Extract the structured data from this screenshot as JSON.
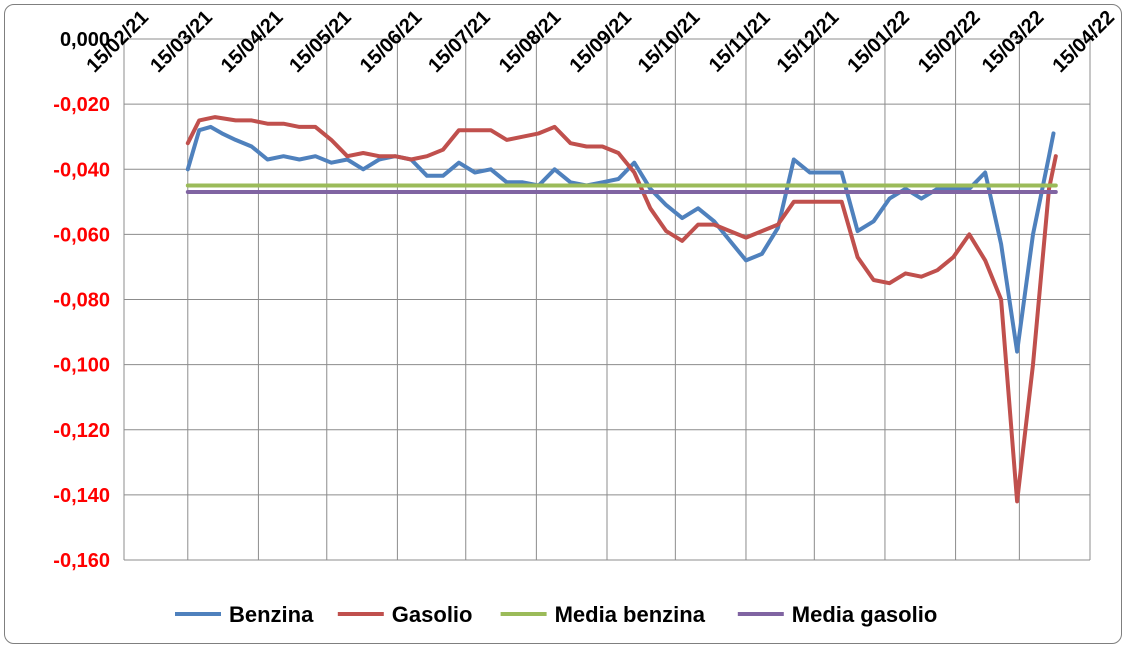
{
  "chart_data": {
    "type": "line",
    "title": "",
    "xlabel": "",
    "ylabel": "",
    "ylim": [
      -0.16,
      0.0
    ],
    "y_ticks": [
      "0,000",
      "-0,020",
      "-0,040",
      "-0,060",
      "-0,080",
      "-0,100",
      "-0,120",
      "-0,140",
      "-0,160"
    ],
    "y_tick_colors": [
      "#000000",
      "#ff0000",
      "#ff0000",
      "#ff0000",
      "#ff0000",
      "#ff0000",
      "#ff0000",
      "#ff0000",
      "#ff0000"
    ],
    "x_ticks": [
      "15/02/21",
      "15/03/21",
      "15/04/21",
      "15/05/21",
      "15/06/21",
      "15/07/21",
      "15/08/21",
      "15/09/21",
      "15/10/21",
      "15/11/21",
      "15/12/21",
      "15/01/22",
      "15/02/22",
      "15/03/22",
      "15/04/22"
    ],
    "x_range": [
      "15/02/21",
      "15/04/22"
    ],
    "grid": true,
    "legend_position": "bottom",
    "series": [
      {
        "name": "Benzina",
        "color": "#4f81bd",
        "points": [
          [
            "15/03/21",
            -0.04
          ],
          [
            "20/03/21",
            -0.028
          ],
          [
            "25/03/21",
            -0.027
          ],
          [
            "30/03/21",
            -0.029
          ],
          [
            "05/04/21",
            -0.031
          ],
          [
            "12/04/21",
            -0.033
          ],
          [
            "19/04/21",
            -0.037
          ],
          [
            "26/04/21",
            -0.036
          ],
          [
            "03/05/21",
            -0.037
          ],
          [
            "10/05/21",
            -0.036
          ],
          [
            "17/05/21",
            -0.038
          ],
          [
            "24/05/21",
            -0.037
          ],
          [
            "31/05/21",
            -0.04
          ],
          [
            "07/06/21",
            -0.037
          ],
          [
            "14/06/21",
            -0.036
          ],
          [
            "21/06/21",
            -0.037
          ],
          [
            "28/06/21",
            -0.042
          ],
          [
            "05/07/21",
            -0.042
          ],
          [
            "12/07/21",
            -0.038
          ],
          [
            "19/07/21",
            -0.041
          ],
          [
            "26/07/21",
            -0.04
          ],
          [
            "02/08/21",
            -0.044
          ],
          [
            "09/08/21",
            -0.044
          ],
          [
            "16/08/21",
            -0.045
          ],
          [
            "23/08/21",
            -0.04
          ],
          [
            "30/08/21",
            -0.044
          ],
          [
            "06/09/21",
            -0.045
          ],
          [
            "13/09/21",
            -0.044
          ],
          [
            "20/09/21",
            -0.043
          ],
          [
            "27/09/21",
            -0.038
          ],
          [
            "04/10/21",
            -0.046
          ],
          [
            "11/10/21",
            -0.051
          ],
          [
            "18/10/21",
            -0.055
          ],
          [
            "25/10/21",
            -0.052
          ],
          [
            "01/11/21",
            -0.056
          ],
          [
            "08/11/21",
            -0.062
          ],
          [
            "15/11/21",
            -0.068
          ],
          [
            "22/11/21",
            -0.066
          ],
          [
            "29/11/21",
            -0.058
          ],
          [
            "06/12/21",
            -0.037
          ],
          [
            "13/12/21",
            -0.041
          ],
          [
            "20/12/21",
            -0.041
          ],
          [
            "27/12/21",
            -0.041
          ],
          [
            "03/01/22",
            -0.059
          ],
          [
            "10/01/22",
            -0.056
          ],
          [
            "17/01/22",
            -0.049
          ],
          [
            "24/01/22",
            -0.046
          ],
          [
            "31/01/22",
            -0.049
          ],
          [
            "07/02/22",
            -0.046
          ],
          [
            "14/02/22",
            -0.046
          ],
          [
            "21/02/22",
            -0.046
          ],
          [
            "28/02/22",
            -0.041
          ],
          [
            "07/03/22",
            -0.063
          ],
          [
            "14/03/22",
            -0.096
          ],
          [
            "21/03/22",
            -0.06
          ],
          [
            "28/03/22",
            -0.036
          ],
          [
            "30/03/22",
            -0.029
          ]
        ]
      },
      {
        "name": "Gasolio",
        "color": "#c0504d",
        "points": [
          [
            "15/03/21",
            -0.032
          ],
          [
            "20/03/21",
            -0.025
          ],
          [
            "27/03/21",
            -0.024
          ],
          [
            "05/04/21",
            -0.025
          ],
          [
            "12/04/21",
            -0.025
          ],
          [
            "19/04/21",
            -0.026
          ],
          [
            "26/04/21",
            -0.026
          ],
          [
            "03/05/21",
            -0.027
          ],
          [
            "10/05/21",
            -0.027
          ],
          [
            "17/05/21",
            -0.031
          ],
          [
            "24/05/21",
            -0.036
          ],
          [
            "31/05/21",
            -0.035
          ],
          [
            "07/06/21",
            -0.036
          ],
          [
            "14/06/21",
            -0.036
          ],
          [
            "21/06/21",
            -0.037
          ],
          [
            "28/06/21",
            -0.036
          ],
          [
            "05/07/21",
            -0.034
          ],
          [
            "12/07/21",
            -0.028
          ],
          [
            "19/07/21",
            -0.028
          ],
          [
            "26/07/21",
            -0.028
          ],
          [
            "02/08/21",
            -0.031
          ],
          [
            "09/08/21",
            -0.03
          ],
          [
            "16/08/21",
            -0.029
          ],
          [
            "23/08/21",
            -0.027
          ],
          [
            "30/08/21",
            -0.032
          ],
          [
            "06/09/21",
            -0.033
          ],
          [
            "13/09/21",
            -0.033
          ],
          [
            "20/09/21",
            -0.035
          ],
          [
            "27/09/21",
            -0.041
          ],
          [
            "04/10/21",
            -0.052
          ],
          [
            "11/10/21",
            -0.059
          ],
          [
            "18/10/21",
            -0.062
          ],
          [
            "25/10/21",
            -0.057
          ],
          [
            "01/11/21",
            -0.057
          ],
          [
            "08/11/21",
            -0.059
          ],
          [
            "15/11/21",
            -0.061
          ],
          [
            "22/11/21",
            -0.059
          ],
          [
            "29/11/21",
            -0.057
          ],
          [
            "06/12/21",
            -0.05
          ],
          [
            "13/12/21",
            -0.05
          ],
          [
            "20/12/21",
            -0.05
          ],
          [
            "27/12/21",
            -0.05
          ],
          [
            "03/01/22",
            -0.067
          ],
          [
            "10/01/22",
            -0.074
          ],
          [
            "17/01/22",
            -0.075
          ],
          [
            "24/01/22",
            -0.072
          ],
          [
            "31/01/22",
            -0.073
          ],
          [
            "07/02/22",
            -0.071
          ],
          [
            "14/02/22",
            -0.067
          ],
          [
            "21/02/22",
            -0.06
          ],
          [
            "28/02/22",
            -0.068
          ],
          [
            "07/03/22",
            -0.08
          ],
          [
            "14/03/22",
            -0.142
          ],
          [
            "21/03/22",
            -0.1
          ],
          [
            "28/03/22",
            -0.046
          ],
          [
            "31/03/22",
            -0.036
          ]
        ]
      },
      {
        "name": "Media benzina",
        "color": "#9bbb59",
        "points": [
          [
            "15/03/21",
            -0.045
          ],
          [
            "31/03/22",
            -0.045
          ]
        ]
      },
      {
        "name": "Media gasolio",
        "color": "#8064a2",
        "points": [
          [
            "15/03/21",
            -0.047
          ],
          [
            "31/03/22",
            -0.047
          ]
        ]
      }
    ]
  }
}
